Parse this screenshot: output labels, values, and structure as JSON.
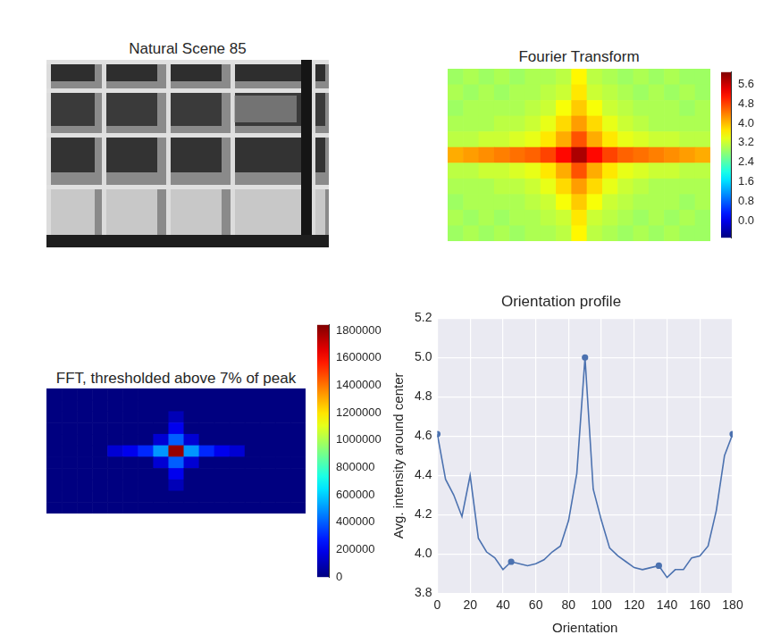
{
  "chart_data": [
    {
      "type": "image",
      "title": "Natural Scene 85"
    },
    {
      "type": "heatmap",
      "title": "Fourier Transform",
      "tick_labels": false,
      "cells": [
        [
          2.9,
          3.0,
          2.9,
          3.0,
          2.9,
          3.0,
          3.0,
          3.1,
          3.6,
          3.1,
          3.0,
          2.9,
          3.0,
          2.9,
          3.0,
          2.9,
          2.9
        ],
        [
          3.0,
          2.9,
          3.0,
          2.9,
          3.0,
          3.0,
          3.1,
          3.2,
          3.7,
          3.2,
          3.1,
          3.0,
          2.9,
          3.0,
          2.9,
          3.0,
          2.9
        ],
        [
          2.9,
          3.0,
          3.0,
          3.0,
          3.0,
          3.1,
          3.2,
          3.5,
          3.9,
          3.5,
          3.2,
          3.1,
          3.0,
          3.0,
          3.0,
          2.9,
          3.0
        ],
        [
          3.0,
          3.0,
          3.0,
          3.1,
          3.1,
          3.2,
          3.4,
          3.8,
          4.2,
          3.8,
          3.4,
          3.2,
          3.1,
          3.0,
          3.0,
          3.0,
          3.0
        ],
        [
          3.1,
          3.1,
          3.2,
          3.2,
          3.3,
          3.4,
          3.7,
          4.1,
          4.7,
          4.1,
          3.7,
          3.4,
          3.3,
          3.2,
          3.2,
          3.1,
          3.1
        ],
        [
          4.1,
          4.2,
          4.3,
          4.4,
          4.5,
          4.6,
          4.8,
          5.2,
          5.8,
          5.2,
          4.8,
          4.6,
          4.5,
          4.4,
          4.3,
          4.2,
          4.1
        ],
        [
          3.1,
          3.1,
          3.2,
          3.2,
          3.3,
          3.4,
          3.7,
          4.1,
          4.7,
          4.1,
          3.7,
          3.4,
          3.3,
          3.2,
          3.2,
          3.1,
          3.1
        ],
        [
          3.0,
          3.0,
          3.0,
          3.1,
          3.1,
          3.2,
          3.4,
          3.8,
          4.2,
          3.8,
          3.4,
          3.2,
          3.1,
          3.0,
          3.0,
          3.0,
          3.0
        ],
        [
          2.9,
          3.0,
          3.0,
          3.0,
          3.0,
          3.1,
          3.2,
          3.5,
          3.9,
          3.5,
          3.2,
          3.1,
          3.0,
          3.0,
          3.0,
          2.9,
          3.0
        ],
        [
          3.0,
          2.9,
          3.0,
          2.9,
          3.0,
          3.0,
          3.1,
          3.2,
          3.7,
          3.2,
          3.1,
          3.0,
          2.9,
          3.0,
          2.9,
          3.0,
          2.9
        ],
        [
          2.9,
          3.0,
          2.9,
          3.0,
          2.9,
          3.0,
          3.0,
          3.1,
          3.6,
          3.1,
          3.0,
          2.9,
          3.0,
          2.9,
          3.0,
          2.9,
          2.9
        ]
      ],
      "colorbar": {
        "range": [
          -0.7,
          6.1
        ],
        "ticks": [
          {
            "value": 0,
            "label": "0.0"
          },
          {
            "value": 0.8,
            "label": "0.8"
          },
          {
            "value": 1.6,
            "label": "1.6"
          },
          {
            "value": 2.4,
            "label": "2.4"
          },
          {
            "value": 3.2,
            "label": "3.2"
          },
          {
            "value": 4,
            "label": "4.0"
          },
          {
            "value": 4.8,
            "label": "4.8"
          },
          {
            "value": 5.6,
            "label": "5.6"
          }
        ]
      }
    },
    {
      "type": "heatmap",
      "title": "FFT, thresholded above 7% of peak",
      "tick_labels": false,
      "cells": [
        [
          0,
          0,
          0,
          0,
          0,
          0,
          0,
          0,
          0,
          0,
          0,
          0,
          0,
          0,
          0,
          0,
          0
        ],
        [
          0,
          0,
          0,
          0,
          0,
          0,
          0,
          0,
          0,
          0,
          0,
          0,
          0,
          0,
          0,
          0,
          0
        ],
        [
          0,
          0,
          0,
          0,
          0,
          0,
          0,
          0,
          100000,
          0,
          0,
          0,
          0,
          0,
          0,
          0,
          0
        ],
        [
          0,
          0,
          0,
          0,
          0,
          0,
          0,
          0,
          200000,
          0,
          0,
          0,
          0,
          0,
          0,
          0,
          0
        ],
        [
          0,
          0,
          0,
          0,
          0,
          0,
          0,
          150000,
          400000,
          150000,
          0,
          0,
          0,
          0,
          0,
          0,
          0
        ],
        [
          0,
          0,
          0,
          0,
          150000,
          200000,
          300000,
          500000,
          1800000,
          500000,
          300000,
          200000,
          150000,
          0,
          0,
          0,
          0
        ],
        [
          0,
          0,
          0,
          0,
          0,
          0,
          0,
          150000,
          400000,
          150000,
          0,
          0,
          0,
          0,
          0,
          0,
          0
        ],
        [
          0,
          0,
          0,
          0,
          0,
          0,
          0,
          0,
          200000,
          0,
          0,
          0,
          0,
          0,
          0,
          0,
          0
        ],
        [
          0,
          0,
          0,
          0,
          0,
          0,
          0,
          0,
          100000,
          0,
          0,
          0,
          0,
          0,
          0,
          0,
          0
        ],
        [
          0,
          0,
          0,
          0,
          0,
          0,
          0,
          0,
          0,
          0,
          0,
          0,
          0,
          0,
          0,
          0,
          0
        ],
        [
          0,
          0,
          0,
          0,
          0,
          0,
          0,
          0,
          0,
          0,
          0,
          0,
          0,
          0,
          0,
          0,
          0
        ]
      ],
      "colorbar": {
        "range": [
          0,
          1840000
        ],
        "ticks": [
          0,
          200000,
          400000,
          600000,
          800000,
          1000000,
          1200000,
          1400000,
          1600000,
          1800000
        ]
      }
    },
    {
      "type": "line",
      "title": "Orientation profile",
      "x_label": "Orientation",
      "y_label": "Avg. intensity around center",
      "grid": true,
      "xlim": [
        0,
        180
      ],
      "xticks": [
        0,
        20,
        40,
        60,
        80,
        100,
        120,
        140,
        160,
        180
      ],
      "ylim": [
        3.8,
        5.2
      ],
      "yticks": [
        3.8,
        {
          "value": 4,
          "label": "4.0"
        },
        4.2,
        4.4,
        4.6,
        4.8,
        {
          "value": 5,
          "label": "5.0"
        },
        5.2
      ],
      "series": [
        {
          "color": "#4c72b0",
          "marker": "none",
          "line_style": "solid",
          "x": [
            0,
            5,
            10,
            15,
            20,
            25,
            30,
            35,
            40,
            45,
            50,
            55,
            60,
            65,
            70,
            75,
            80,
            85,
            90,
            95,
            100,
            105,
            110,
            115,
            120,
            125,
            130,
            135,
            140,
            145,
            150,
            155,
            160,
            165,
            170,
            175,
            180
          ],
          "values": [
            4.61,
            4.38,
            4.3,
            4.19,
            4.4,
            4.08,
            4.01,
            3.98,
            3.92,
            3.96,
            3.95,
            3.94,
            3.95,
            3.97,
            4.01,
            4.04,
            4.17,
            4.41,
            5.0,
            4.33,
            4.17,
            4.03,
            3.99,
            3.96,
            3.93,
            3.92,
            3.93,
            3.94,
            3.88,
            3.92,
            3.92,
            3.98,
            3.99,
            4.04,
            4.22,
            4.5,
            4.61
          ]
        },
        {
          "color": "#4c72b0",
          "marker": "circle",
          "line_style": "none",
          "x": [
            0,
            45,
            90,
            135,
            180
          ],
          "values": [
            4.61,
            3.96,
            5.0,
            3.94,
            4.61
          ]
        }
      ]
    }
  ]
}
